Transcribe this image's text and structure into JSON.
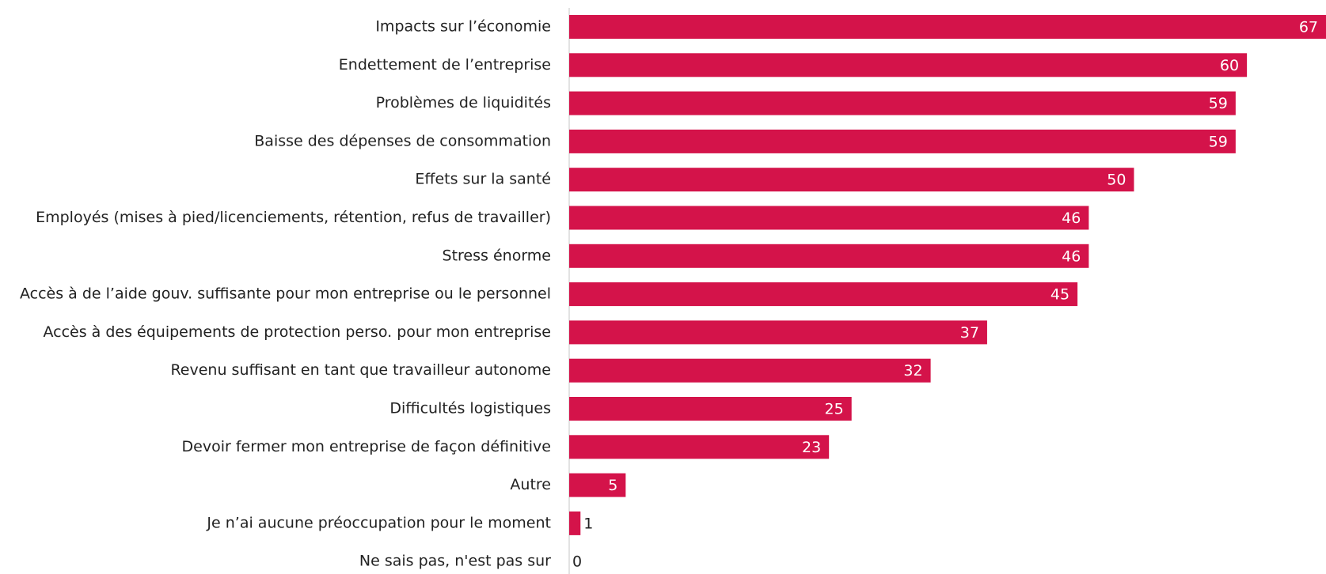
{
  "chart_data": {
    "type": "bar",
    "orientation": "horizontal",
    "categories": [
      "Impacts sur l’économie",
      "Endettement de l’entreprise",
      "Problèmes de liquidités",
      "Baisse des dépenses de consommation",
      "Effets sur la santé",
      "Employés (mises à pied/licenciements, rétention, refus de travailler)",
      "Stress énorme",
      "Accès à de l’aide gouv. suffisante pour mon entreprise ou le personnel",
      "Accès à des équipements de protection perso. pour mon entreprise",
      "Revenu suffisant en tant que travailleur autonome",
      "Difficultés logistiques",
      "Devoir fermer mon entreprise de façon définitive",
      "Autre",
      "Je n’ai aucune préoccupation pour le moment",
      "Ne sais pas, n'est pas sur"
    ],
    "values": [
      67,
      60,
      59,
      59,
      50,
      46,
      46,
      45,
      37,
      32,
      25,
      23,
      5,
      1,
      0
    ],
    "color": "#d4134a"
  }
}
